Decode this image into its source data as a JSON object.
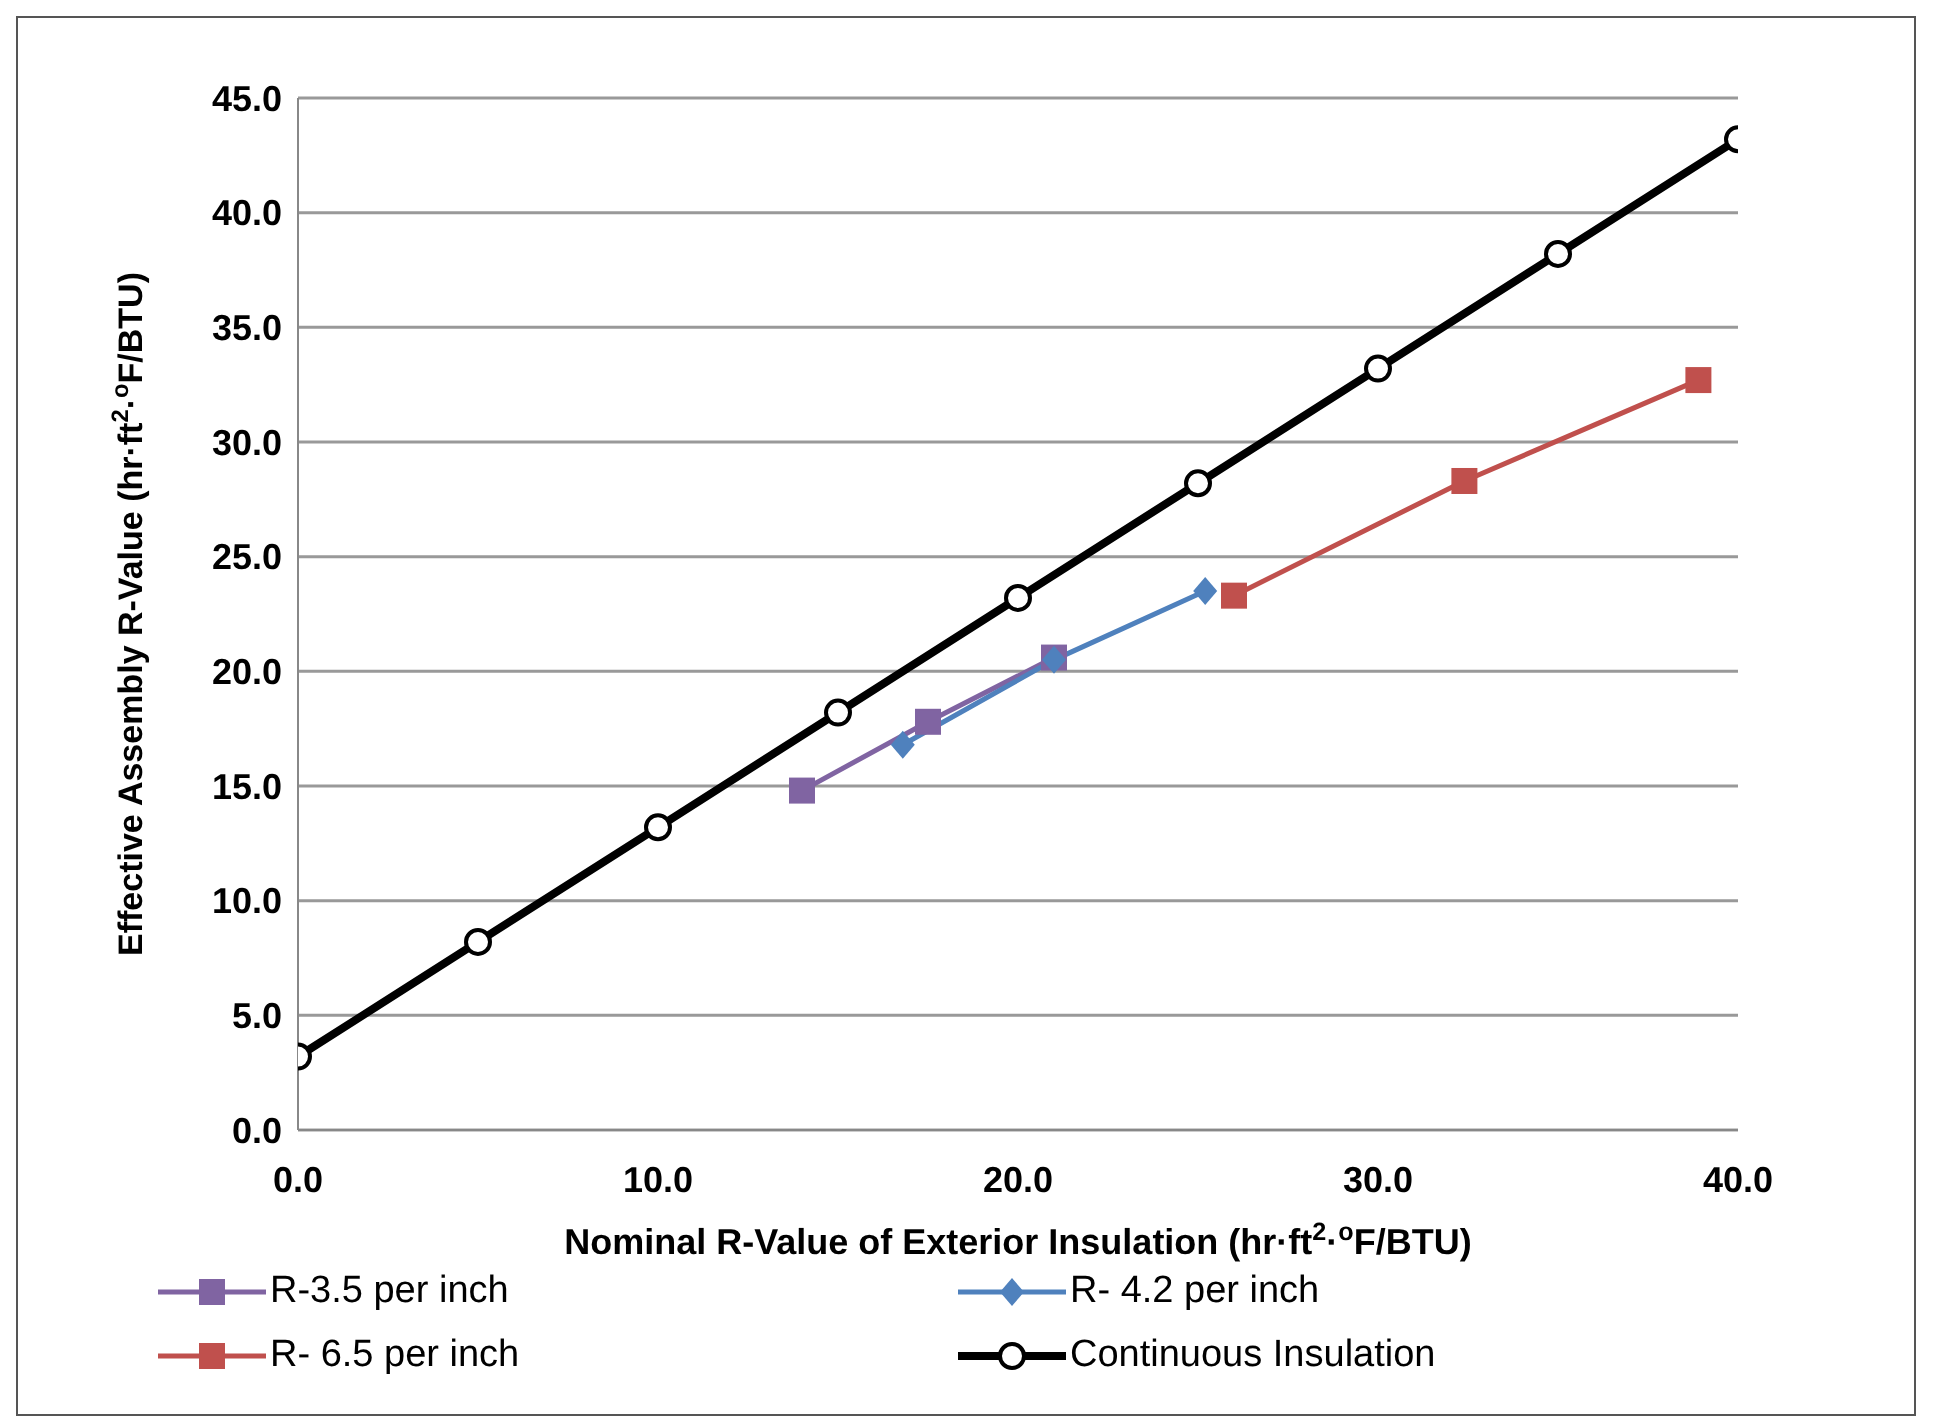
{
  "chart_data": {
    "type": "line",
    "xlabel": "Nominal R-Value of Exterior Insulation (hr·ft$^{2}$·$^{o}$F/BTU)",
    "ylabel": "Effective Assembly R-Value (hr·ft$^{2}$·$^{o}$F/BTU)",
    "xlim": [
      0,
      40
    ],
    "xticks": [
      {
        "value": 0,
        "label": "0.0"
      },
      {
        "value": 10,
        "label": "10.0"
      },
      {
        "value": 20,
        "label": "20.0"
      },
      {
        "value": 30,
        "label": "30.0"
      },
      {
        "value": 40,
        "label": "40.0"
      }
    ],
    "ylim": [
      0,
      45
    ],
    "yticks": [
      {
        "value": 0,
        "label": "0.0"
      },
      {
        "value": 5,
        "label": "5.0"
      },
      {
        "value": 10,
        "label": "10.0"
      },
      {
        "value": 15,
        "label": "15.0"
      },
      {
        "value": 20,
        "label": "20.0"
      },
      {
        "value": 25,
        "label": "25.0"
      },
      {
        "value": 30,
        "label": "30.0"
      },
      {
        "value": 35,
        "label": "35.0"
      },
      {
        "value": 40,
        "label": "40.0"
      },
      {
        "value": 45,
        "label": "45.0"
      }
    ],
    "grid": "y",
    "legend": "bottom",
    "series": [
      {
        "name": "R-3.5 per inch",
        "color": "#8064a2",
        "marker": "square",
        "x": [
          14.0,
          17.5,
          21.0
        ],
        "values": [
          14.8,
          17.8,
          20.6
        ]
      },
      {
        "name": "R- 4.2 per inch",
        "color": "#4f81bd",
        "marker": "diamond",
        "x": [
          16.8,
          21.0,
          25.2
        ],
        "values": [
          16.8,
          20.5,
          23.5
        ]
      },
      {
        "name": "R- 6.5 per inch",
        "color": "#c0504d",
        "marker": "square",
        "x": [
          26.0,
          32.4,
          38.9
        ],
        "values": [
          23.3,
          28.3,
          32.7
        ]
      },
      {
        "name": "Continuous Insulation",
        "color": "#000000",
        "marker": "circle",
        "x": [
          0,
          5,
          10,
          15,
          20,
          25,
          30,
          35,
          40
        ],
        "values": [
          3.2,
          8.2,
          13.2,
          18.2,
          23.2,
          28.2,
          33.2,
          38.2,
          43.2
        ]
      }
    ]
  }
}
